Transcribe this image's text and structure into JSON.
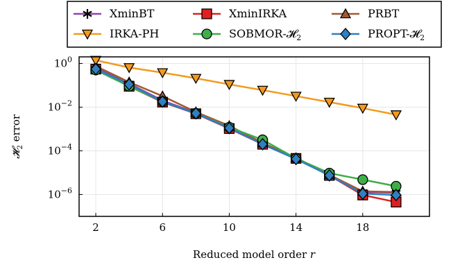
{
  "chart_data": {
    "type": "line",
    "xlabel": "Reduced model order r",
    "ylabel": "H2 error",
    "xlim": [
      1,
      22
    ],
    "ylim": [
      1e-07,
      2
    ],
    "yscale": "log",
    "xticks": [
      2,
      6,
      10,
      14,
      18
    ],
    "xtick_labels": [
      "2",
      "6",
      "10",
      "14",
      "18"
    ],
    "yticks": [
      1,
      0.01,
      0.0001,
      1e-06
    ],
    "ytick_labels": [
      {
        "base": "10",
        "exp": "0"
      },
      {
        "base": "10",
        "exp": "−2"
      },
      {
        "base": "10",
        "exp": "−4"
      },
      {
        "base": "10",
        "exp": "−6"
      }
    ],
    "grid": true,
    "legend_position": "top, outside plot",
    "x": [
      2,
      4,
      6,
      8,
      10,
      12,
      14,
      16,
      18,
      20
    ],
    "series": [
      {
        "name": "XminBT",
        "color": "#8e44ad",
        "marker": "star",
        "values": [
          0.65,
          0.12,
          0.02,
          0.0055,
          0.0012,
          0.00022,
          4.5e-05,
          7.5e-06,
          1.3e-06,
          1.2e-06
        ]
      },
      {
        "name": "XminIRKA",
        "color": "#e02020",
        "marker": "square",
        "values": [
          0.55,
          0.09,
          0.017,
          0.005,
          0.00105,
          0.0002,
          4.5e-05,
          7.5e-06,
          9.5e-07,
          4.5e-07
        ]
      },
      {
        "name": "PRBT",
        "color": "#a05a32",
        "marker": "triangle-up",
        "values": [
          0.75,
          0.14,
          0.032,
          0.006,
          0.0014,
          0.00023,
          4.8e-05,
          8e-06,
          1.4e-06,
          1.3e-06
        ]
      },
      {
        "name": "IRKA-PH",
        "color": "#f39a1e",
        "marker": "triangle-down",
        "values": [
          1.4,
          0.65,
          0.38,
          0.21,
          0.11,
          0.06,
          0.032,
          0.017,
          0.009,
          0.0045
        ]
      },
      {
        "name": "SOBMOR-H2",
        "color": "#3fae49",
        "marker": "circle",
        "values": [
          0.5,
          0.09,
          0.018,
          0.0052,
          0.0012,
          0.00032,
          4.5e-05,
          9.5e-06,
          4.8e-06,
          2.4e-06
        ]
      },
      {
        "name": "PROPT-H2",
        "color": "#2f7fc1",
        "marker": "diamond",
        "values": [
          0.55,
          0.11,
          0.018,
          0.0052,
          0.0011,
          0.0002,
          4.2e-05,
          7.5e-06,
          1.1e-06,
          9.5e-07
        ]
      }
    ],
    "legend_labels": [
      {
        "text": "XminBT",
        "sub": ""
      },
      {
        "text": "XminIRKA",
        "sub": ""
      },
      {
        "text": "PRBT",
        "sub": ""
      },
      {
        "text": "IRKA-PH",
        "sub": ""
      },
      {
        "text": "SOBMOR-𝓗",
        "sub": "2"
      },
      {
        "text": "PROPT-𝓗",
        "sub": "2"
      }
    ],
    "ylabel_parts": {
      "main": "𝓗",
      "sub": "2",
      "rest": " error"
    },
    "xlabel_parts": {
      "main": "Reduced model order ",
      "var": "r"
    }
  }
}
